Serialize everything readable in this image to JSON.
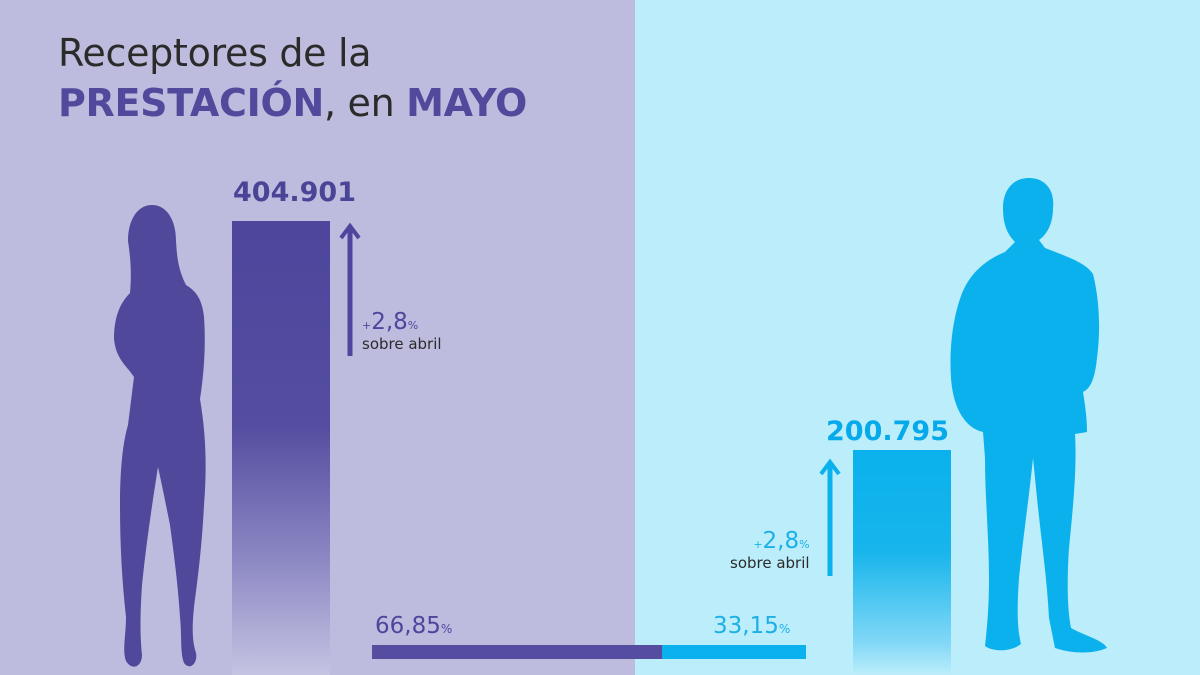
{
  "title": {
    "line1": "Receptores de la",
    "highlight1": "PRESTACIÓN",
    "sep": ", en ",
    "highlight2": "MAYO"
  },
  "chart_data": {
    "type": "bar",
    "title": "Receptores de la PRESTACIÓN, en MAYO",
    "categories": [
      "Mujeres",
      "Hombres"
    ],
    "values": [
      404901,
      200795
    ],
    "value_labels": [
      "404.901",
      "200.795"
    ],
    "change_labels": [
      "2,8",
      "2,8"
    ],
    "change_prefix": "+",
    "change_unit": "%",
    "change_text": "sobre abril",
    "shares": [
      66.85,
      33.15
    ],
    "share_labels": [
      "66,85",
      "33,15"
    ],
    "share_unit": "%",
    "colors": {
      "women": "#4d469c",
      "men": "#0ab1ec",
      "bg_women": "#bebcde",
      "bg_men": "#bcedfb"
    }
  }
}
